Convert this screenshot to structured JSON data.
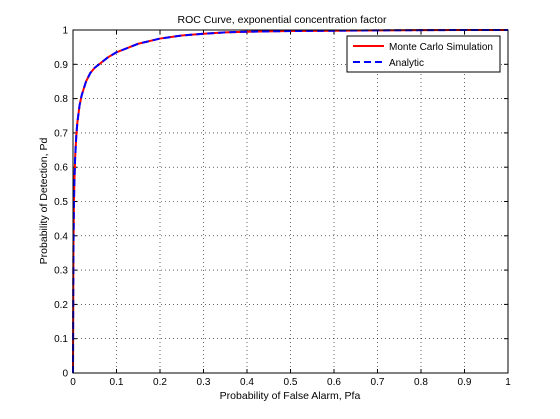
{
  "chart_data": {
    "type": "line",
    "title": "ROC Curve, exponential concentration factor",
    "xlabel": "Probability of False Alarm, Pfa",
    "ylabel": "Probability of Detection, Pd",
    "xlim": [
      0,
      1
    ],
    "ylim": [
      0,
      1
    ],
    "xticks": [
      0,
      0.1,
      0.2,
      0.3,
      0.4,
      0.5,
      0.6,
      0.7,
      0.8,
      0.9,
      1
    ],
    "yticks": [
      0,
      0.1,
      0.2,
      0.3,
      0.4,
      0.5,
      0.6,
      0.7,
      0.8,
      0.9,
      1
    ],
    "xtick_labels": [
      "0",
      "0.1",
      "0.2",
      "0.3",
      "0.4",
      "0.5",
      "0.6",
      "0.7",
      "0.8",
      "0.9",
      "1"
    ],
    "ytick_labels": [
      "0",
      "0.1",
      "0.2",
      "0.3",
      "0.4",
      "0.5",
      "0.6",
      "0.7",
      "0.8",
      "0.9",
      "1"
    ],
    "grid": true,
    "legend_position": "top-right",
    "series": [
      {
        "name": "Monte Carlo Simulation",
        "color": "#ff0000",
        "style": "solid",
        "x": [
          0,
          0.0005,
          0.001,
          0.002,
          0.003,
          0.005,
          0.0075,
          0.01,
          0.015,
          0.02,
          0.03,
          0.04,
          0.05,
          0.06,
          0.07,
          0.08,
          0.1,
          0.12,
          0.15,
          0.2,
          0.25,
          0.3,
          0.35,
          0.4,
          0.5,
          0.6,
          0.7,
          0.8,
          0.9,
          1
        ],
        "y": [
          0,
          0.2,
          0.36,
          0.48,
          0.55,
          0.63,
          0.69,
          0.73,
          0.78,
          0.81,
          0.85,
          0.875,
          0.89,
          0.9,
          0.91,
          0.92,
          0.935,
          0.945,
          0.96,
          0.975,
          0.984,
          0.989,
          0.993,
          0.995,
          0.997,
          0.998,
          0.999,
          0.9995,
          1.0,
          1.0
        ]
      },
      {
        "name": "Analytic",
        "color": "#0000ff",
        "style": "dashed",
        "x": [
          0,
          0.0005,
          0.001,
          0.002,
          0.003,
          0.005,
          0.0075,
          0.01,
          0.015,
          0.02,
          0.03,
          0.04,
          0.05,
          0.06,
          0.07,
          0.08,
          0.1,
          0.12,
          0.15,
          0.2,
          0.25,
          0.3,
          0.35,
          0.4,
          0.5,
          0.6,
          0.7,
          0.8,
          0.9,
          1
        ],
        "y": [
          0,
          0.2,
          0.36,
          0.48,
          0.55,
          0.63,
          0.69,
          0.73,
          0.78,
          0.81,
          0.85,
          0.875,
          0.89,
          0.9,
          0.91,
          0.92,
          0.935,
          0.945,
          0.96,
          0.975,
          0.984,
          0.989,
          0.993,
          0.995,
          0.997,
          0.998,
          0.999,
          0.9995,
          1.0,
          1.0
        ]
      }
    ]
  }
}
